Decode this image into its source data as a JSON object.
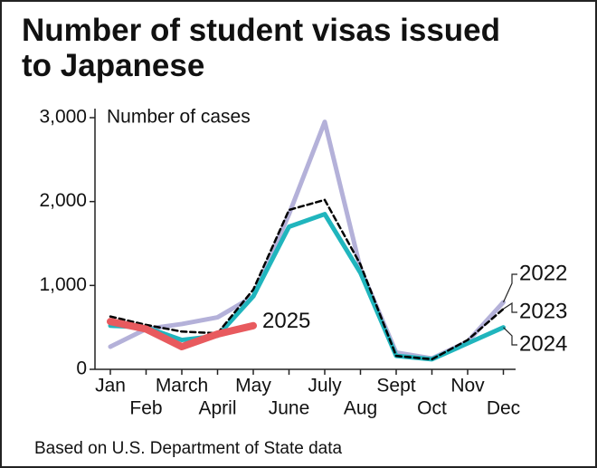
{
  "chart_data": {
    "type": "line",
    "title": "Number of student visas issued to Japanese",
    "y_label": "Number of cases",
    "source": "Based on U.S. Department of State data",
    "categories": [
      "Jan",
      "Feb",
      "March",
      "April",
      "May",
      "June",
      "July",
      "Aug",
      "Sept",
      "Oct",
      "Nov",
      "Dec"
    ],
    "series": [
      {
        "name": "2022",
        "color": "#b4b1d9",
        "line_style": "solid",
        "values": [
          270,
          480,
          540,
          620,
          870,
          1850,
          2950,
          1200,
          200,
          130,
          330,
          800
        ]
      },
      {
        "name": "2024",
        "color": "#20b5bd",
        "line_style": "solid",
        "values": [
          520,
          500,
          350,
          400,
          870,
          1700,
          1850,
          1150,
          160,
          120,
          310,
          500
        ]
      },
      {
        "name": "2023",
        "color": "#000000",
        "line_style": "dashed",
        "values": [
          630,
          530,
          450,
          430,
          950,
          1900,
          2020,
          1250,
          160,
          120,
          350,
          720
        ]
      },
      {
        "name": "2025",
        "color": "#e85a5e",
        "line_style": "solid",
        "values": [
          570,
          480,
          270,
          420,
          520,
          null,
          null,
          null,
          null,
          null,
          null,
          null
        ]
      }
    ],
    "ylim": [
      0,
      3000
    ],
    "yticks": [
      0,
      {
        "value": 1000,
        "label": "1,000"
      },
      {
        "value": 2000,
        "label": "2,000"
      },
      {
        "value": 3000,
        "label": "3,000"
      }
    ],
    "grid": false
  }
}
